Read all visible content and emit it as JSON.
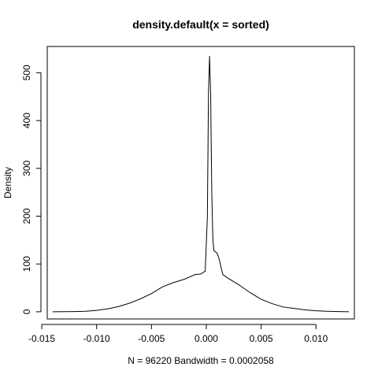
{
  "chart_data": {
    "type": "line",
    "title": "density.default(x = sorted)",
    "xlabel": "N = 96220   Bandwidth = 0.0002058",
    "ylabel": "Density",
    "xlim": [
      -0.0145,
      0.0135
    ],
    "ylim": [
      -15,
      555
    ],
    "x_ticks": [
      -0.015,
      -0.01,
      -0.005,
      0.0,
      0.005,
      0.01
    ],
    "x_tick_labels": [
      "-0.015",
      "-0.010",
      "-0.005",
      "0.000",
      "0.005",
      "0.010"
    ],
    "y_ticks": [
      0,
      100,
      200,
      300,
      400,
      500
    ],
    "y_tick_labels": [
      "0",
      "100",
      "200",
      "300",
      "400",
      "500"
    ],
    "grid": false,
    "line_color": "#000000",
    "series": [
      {
        "x": [
          -0.014,
          -0.012,
          -0.011,
          -0.01,
          -0.009,
          -0.008,
          -0.007,
          -0.006,
          -0.005,
          -0.004,
          -0.003,
          -0.002,
          -0.0015,
          -0.001,
          -0.0005,
          -0.0001,
          0.0001,
          0.0002,
          0.0003,
          0.0004,
          0.0005,
          0.0006,
          0.0007,
          0.0008,
          0.001,
          0.0012,
          0.0015,
          0.002,
          0.003,
          0.004,
          0.005,
          0.006,
          0.007,
          0.008,
          0.009,
          0.01,
          0.011,
          0.012,
          0.013
        ],
        "y": [
          0,
          0.5,
          1,
          3,
          6,
          11,
          18,
          27,
          38,
          52,
          61,
          68,
          73,
          78,
          79,
          85,
          200,
          460,
          535,
          450,
          250,
          150,
          128,
          126,
          122,
          108,
          78,
          70,
          56,
          40,
          26,
          17,
          10,
          7,
          4,
          2,
          1,
          0.5,
          0
        ]
      }
    ]
  }
}
